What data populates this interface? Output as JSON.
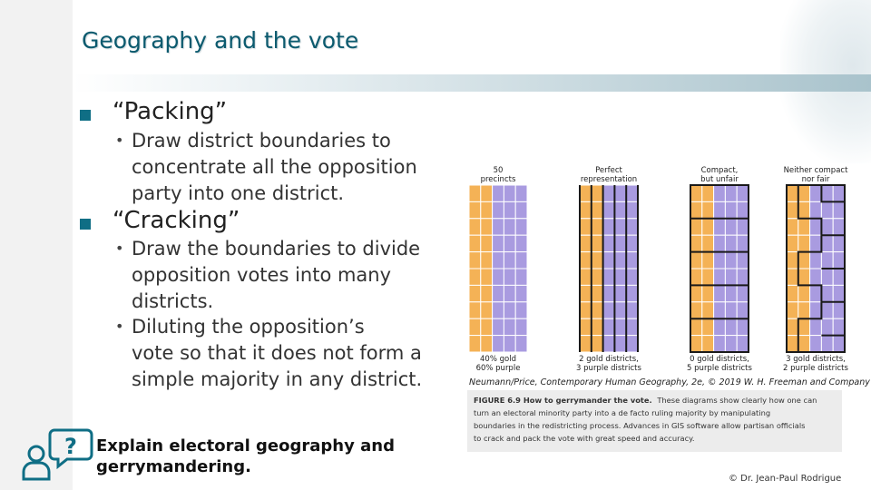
{
  "title": "Geography and the vote",
  "bullets": [
    {
      "label": "“Packing”",
      "subs": [
        "Draw district boundaries to concentrate all the opposition party into one district."
      ]
    },
    {
      "label": "“Cracking”",
      "subs": [
        "Draw the boundaries to divide opposition votes into many districts.",
        "Diluting the opposition’s vote so that it does not form a simple majority in any district."
      ]
    }
  ],
  "sub_lines": [
    [
      "Draw district boundaries to",
      "concentrate all the opposition",
      "party into one district."
    ],
    [
      "Draw the boundaries to divide",
      "opposition votes into many",
      "districts."
    ],
    [
      "Diluting the opposition’s",
      "vote so that it does not form a",
      "simple majority in any district."
    ]
  ],
  "prompt": {
    "line1": "Explain electoral geography and",
    "line2": "gerrymandering."
  },
  "figure": {
    "panels": [
      {
        "top": [
          "50",
          "precincts"
        ],
        "bottom": [
          "40% gold",
          "60% purple"
        ]
      },
      {
        "top": [
          "Perfect",
          "representation"
        ],
        "bottom": [
          "2 gold districts,",
          "3 purple districts"
        ]
      },
      {
        "top": [
          "Compact,",
          "but unfair"
        ],
        "bottom": [
          "0 gold districts,",
          "5 purple districts"
        ]
      },
      {
        "top": [
          "Neither compact",
          "nor fair"
        ],
        "bottom": [
          "3 gold districts,",
          "2 purple districts"
        ]
      }
    ],
    "source": "Neumann/Price, Contemporary Human Geography, 2e, © 2019 W. H. Freeman and Company",
    "caption_lead": "FIGURE 6.9 How to gerrymander the vote.",
    "caption_lines": [
      "These diagrams show clearly how one can",
      "turn an electoral minority party into a de facto ruling majority by manipulating",
      "boundaries in the redistricting process. Advances in GIS software allow partisan officials",
      "to crack and pack the vote with great speed and accuracy."
    ],
    "colors": {
      "gold": "#f4b256",
      "purple": "#a99be0",
      "line": "#ffffff",
      "boundary": "#1a1a1a"
    }
  },
  "credit": "© Dr. Jean-Paul Rodrigue"
}
